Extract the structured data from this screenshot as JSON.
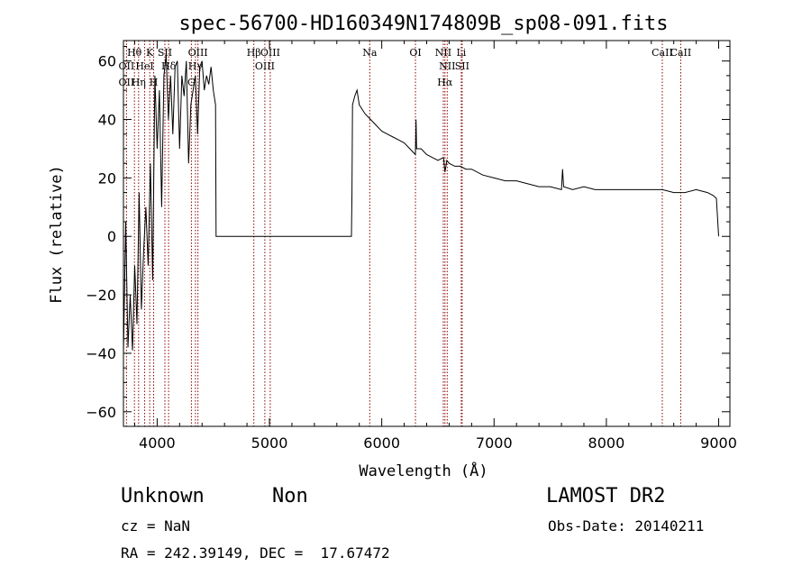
{
  "chart_data": {
    "type": "line",
    "title": "spec-56700-HD160349N174809B_sp08-091.fits",
    "xlabel": "Wavelength (Å)",
    "ylabel": "Flux (relative)",
    "xlim": [
      3700,
      9100
    ],
    "ylim": [
      -65,
      67
    ],
    "x_ticks": [
      4000,
      5000,
      6000,
      7000,
      8000,
      9000
    ],
    "y_ticks": [
      -60,
      -40,
      -20,
      0,
      20,
      40,
      60
    ],
    "grid": false,
    "series": [
      {
        "x": [
          3700,
          3720,
          3740,
          3760,
          3780,
          3800,
          3820,
          3840,
          3860,
          3880,
          3900,
          3920,
          3940,
          3960,
          3980,
          4000,
          4020,
          4040,
          4060,
          4080,
          4100,
          4120,
          4140,
          4160,
          4180,
          4200,
          4220,
          4240,
          4260,
          4280,
          4300,
          4320,
          4340,
          4360,
          4380,
          4400,
          4420,
          4440,
          4460,
          4480,
          4500,
          4520,
          4525,
          5730,
          5735,
          5740,
          5760,
          5780,
          5800,
          5850,
          5900,
          5950,
          6000,
          6050,
          6100,
          6150,
          6200,
          6250,
          6300,
          6305,
          6310,
          6350,
          6400,
          6450,
          6500,
          6550,
          6563,
          6580,
          6600,
          6650,
          6700,
          6750,
          6800,
          6900,
          7000,
          7100,
          7200,
          7300,
          7400,
          7500,
          7600,
          7610,
          7620,
          7700,
          7800,
          7900,
          8000,
          8100,
          8200,
          8300,
          8400,
          8500,
          8600,
          8700,
          8800,
          8900,
          8950,
          8980,
          9000
        ],
        "y": [
          -40,
          5,
          -38,
          -20,
          -39,
          -10,
          -30,
          15,
          -25,
          -5,
          10,
          -10,
          25,
          -15,
          55,
          30,
          50,
          10,
          55,
          62,
          40,
          55,
          35,
          58,
          60,
          30,
          55,
          48,
          60,
          25,
          45,
          50,
          55,
          35,
          58,
          60,
          50,
          55,
          52,
          58,
          50,
          45,
          0,
          0,
          15,
          45,
          48,
          50,
          45,
          42,
          40,
          38,
          36,
          35,
          34,
          33,
          32,
          30,
          28,
          40,
          30,
          30,
          28,
          27,
          26,
          27,
          22,
          26,
          25,
          24,
          24,
          23,
          23,
          21,
          20,
          19,
          19,
          18,
          17,
          17,
          16,
          23,
          17,
          16,
          17,
          16,
          16,
          16,
          16,
          16,
          16,
          16,
          15,
          15,
          16,
          15,
          14,
          13,
          0
        ]
      }
    ],
    "annotations": [
      {
        "label": "Hθ",
        "x": 3798
      },
      {
        "label": "OII",
        "x": 3727
      },
      {
        "label": "OII",
        "x": 3727
      },
      {
        "label": "HeI",
        "x": 3889
      },
      {
        "label": "Hη",
        "x": 3835
      },
      {
        "label": "K",
        "x": 3934
      },
      {
        "label": "H",
        "x": 3969
      },
      {
        "label": "SII",
        "x": 4069
      },
      {
        "label": "Hδ",
        "x": 4102
      },
      {
        "label": "OIII",
        "x": 4363
      },
      {
        "label": "Hγ",
        "x": 4341
      },
      {
        "label": "G",
        "x": 4305
      },
      {
        "label": "OIII",
        "x": 5007
      },
      {
        "label": "OIII",
        "x": 4959
      },
      {
        "label": "Hβ",
        "x": 4861
      },
      {
        "label": "Na",
        "x": 5893
      },
      {
        "label": "OI",
        "x": 6300
      },
      {
        "label": "NII",
        "x": 6548
      },
      {
        "label": "NII",
        "x": 6583
      },
      {
        "label": "Hα",
        "x": 6563
      },
      {
        "label": "Li",
        "x": 6708
      },
      {
        "label": "SII",
        "x": 6716
      },
      {
        "label": "CaII",
        "x": 8498
      },
      {
        "label": "CaII",
        "x": 8662
      }
    ]
  },
  "info": {
    "class": "Unknown",
    "subclass": "Non",
    "survey": "LAMOST DR2",
    "cz": "cz = NaN",
    "obs_date": "Obs-Date: 20140211",
    "coords": "RA = 242.39149, DEC =  17.67472"
  }
}
